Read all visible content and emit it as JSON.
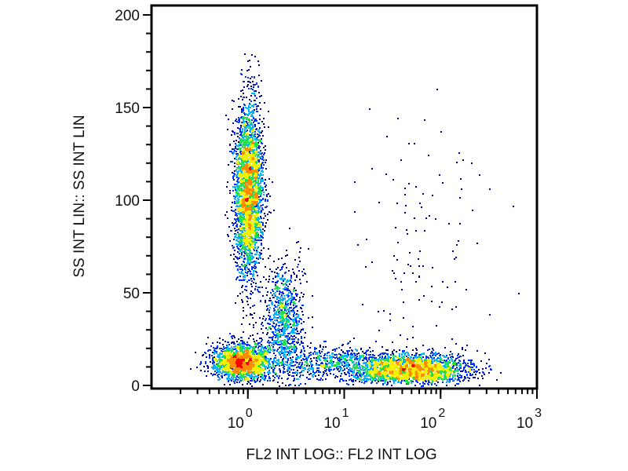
{
  "chart_data": {
    "type": "scatter",
    "subtype": "flow-cytometry-density-dot-plot",
    "xlabel": "FL2 INT LOG:: FL2 INT LOG",
    "ylabel": "SS INT LIN:: SS INT LIN",
    "x_scale": "log",
    "xlim": [
      0.1,
      1000
    ],
    "ylim": [
      0,
      205
    ],
    "x_ticks": [
      {
        "base": "10",
        "exp": "0",
        "value": 1
      },
      {
        "base": "10",
        "exp": "1",
        "value": 10
      },
      {
        "base": "10",
        "exp": "2",
        "value": 100
      },
      {
        "base": "10",
        "exp": "3",
        "value": 1000
      }
    ],
    "y_ticks": [
      "0",
      "50",
      "100",
      "150",
      "200"
    ],
    "y_tick_values": [
      0,
      50,
      100,
      150,
      200
    ],
    "grid": false,
    "legend": "none",
    "colormap": [
      "#00008c",
      "#0030ff",
      "#00b4ff",
      "#20e050",
      "#f0f000",
      "#ff8c00",
      "#ff0000"
    ],
    "populations": [
      {
        "center_x": 1.0,
        "center_y": 105,
        "log_sd_x": 0.075,
        "sd_y": 24,
        "events": 3200
      },
      {
        "center_x": 0.85,
        "center_y": 13,
        "log_sd_x": 0.15,
        "sd_y": 5,
        "events": 1900
      },
      {
        "center_x": 2.4,
        "center_y": 35,
        "log_sd_x": 0.1,
        "sd_y": 16,
        "events": 900
      },
      {
        "center_x": 50,
        "center_y": 9,
        "log_sd_x": 0.3,
        "sd_y": 4,
        "events": 2400
      },
      {
        "center_x": 8,
        "center_y": 12,
        "log_sd_x": 0.35,
        "sd_y": 5,
        "events": 700
      },
      {
        "center_x": 60,
        "center_y": 70,
        "log_sd_x": 0.35,
        "sd_y": 40,
        "events": 130
      }
    ]
  }
}
